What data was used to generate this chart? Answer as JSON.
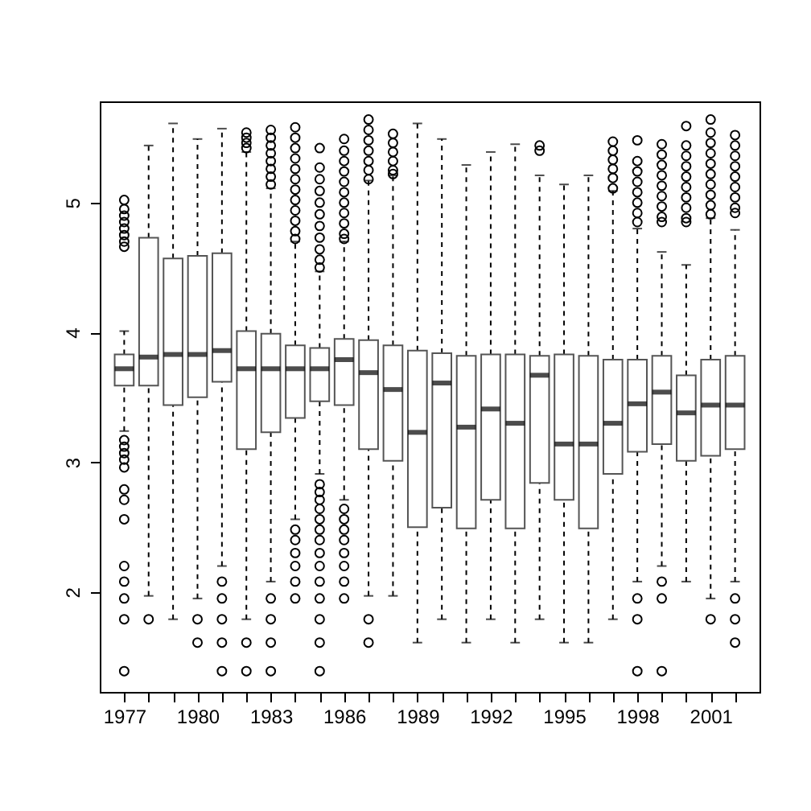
{
  "chart_data": {
    "type": "box",
    "categories": [
      "1977",
      null,
      null,
      "1980",
      null,
      null,
      "1983",
      null,
      null,
      "1986",
      null,
      null,
      "1989",
      null,
      null,
      "1992",
      null,
      null,
      "1995",
      null,
      null,
      "1998",
      null,
      null,
      "2001",
      null
    ],
    "boxes": [
      {
        "low": 3.24,
        "q1": 3.59,
        "median": 3.72,
        "q3": 3.83,
        "high": 4.01,
        "outliers": [
          5.02,
          4.95,
          4.9,
          4.85,
          4.8,
          4.75,
          4.7,
          4.66,
          3.17,
          3.12,
          3.07,
          3.02,
          2.96,
          2.79,
          2.71,
          2.56,
          2.2,
          2.08,
          1.95,
          1.79,
          1.39
        ]
      },
      {
        "low": 1.97,
        "q1": 3.59,
        "median": 3.81,
        "q3": 4.73,
        "high": 5.44,
        "outliers": [
          1.79
        ]
      },
      {
        "low": 1.79,
        "q1": 3.44,
        "median": 3.83,
        "q3": 4.57,
        "high": 5.61
      },
      {
        "low": 1.95,
        "q1": 3.5,
        "median": 3.83,
        "q3": 4.59,
        "high": 5.49,
        "outliers": [
          1.79,
          1.61
        ]
      },
      {
        "low": 2.2,
        "q1": 3.62,
        "median": 3.86,
        "q3": 4.61,
        "high": 5.57,
        "outliers": [
          2.08,
          1.95,
          1.79,
          1.61,
          1.39
        ]
      },
      {
        "low": 1.79,
        "q1": 3.1,
        "median": 3.72,
        "q3": 4.01,
        "high": 5.39,
        "outliers": [
          5.54,
          5.5,
          5.46,
          5.42,
          1.61,
          1.39
        ]
      },
      {
        "low": 2.08,
        "q1": 3.23,
        "median": 3.72,
        "q3": 3.99,
        "high": 5.11,
        "outliers": [
          5.56,
          5.5,
          5.44,
          5.38,
          5.32,
          5.26,
          5.2,
          5.14,
          1.95,
          1.79,
          1.61,
          1.39
        ]
      },
      {
        "low": 2.56,
        "q1": 3.34,
        "median": 3.72,
        "q3": 3.9,
        "high": 4.7,
        "outliers": [
          5.58,
          5.5,
          5.42,
          5.34,
          5.26,
          5.18,
          5.1,
          5.02,
          4.94,
          4.86,
          4.78,
          4.72,
          2.48,
          2.4,
          2.3,
          2.2,
          2.08,
          1.95
        ]
      },
      {
        "low": 2.91,
        "q1": 3.47,
        "median": 3.72,
        "q3": 3.88,
        "high": 4.47,
        "outliers": [
          5.42,
          5.27,
          5.18,
          5.09,
          5.0,
          4.91,
          4.82,
          4.73,
          4.64,
          4.56,
          4.5,
          2.83,
          2.77,
          2.71,
          2.64,
          2.56,
          2.48,
          2.4,
          2.3,
          2.2,
          2.08,
          1.95,
          1.79,
          1.61,
          1.39
        ]
      },
      {
        "low": 2.71,
        "q1": 3.44,
        "median": 3.79,
        "q3": 3.95,
        "high": 4.7,
        "outliers": [
          5.49,
          5.4,
          5.32,
          5.24,
          5.16,
          5.08,
          5.0,
          4.92,
          4.84,
          4.76,
          4.72,
          2.64,
          2.56,
          2.48,
          2.4,
          2.3,
          2.2,
          2.08,
          1.95
        ]
      },
      {
        "low": 1.97,
        "q1": 3.1,
        "median": 3.69,
        "q3": 3.94,
        "high": 5.17,
        "outliers": [
          5.64,
          5.56,
          5.48,
          5.4,
          5.32,
          5.25,
          5.18,
          1.79,
          1.61
        ]
      },
      {
        "low": 1.97,
        "q1": 3.01,
        "median": 3.56,
        "q3": 3.9,
        "high": 5.21,
        "outliers": [
          5.53,
          5.46,
          5.39,
          5.32,
          5.25,
          5.22
        ]
      },
      {
        "low": 1.61,
        "q1": 2.5,
        "median": 3.23,
        "q3": 3.86,
        "high": 5.61
      },
      {
        "low": 1.79,
        "q1": 2.65,
        "median": 3.61,
        "q3": 3.84,
        "high": 5.49
      },
      {
        "low": 1.61,
        "q1": 2.49,
        "median": 3.27,
        "q3": 3.82,
        "high": 5.29
      },
      {
        "low": 1.79,
        "q1": 2.71,
        "median": 3.41,
        "q3": 3.83,
        "high": 5.39
      },
      {
        "low": 1.61,
        "q1": 2.49,
        "median": 3.3,
        "q3": 3.83,
        "high": 5.45
      },
      {
        "low": 1.79,
        "q1": 2.84,
        "median": 3.67,
        "q3": 3.82,
        "high": 5.21,
        "outliers": [
          5.44,
          5.4
        ]
      },
      {
        "low": 1.61,
        "q1": 2.71,
        "median": 3.14,
        "q3": 3.83,
        "high": 5.14
      },
      {
        "low": 1.61,
        "q1": 2.49,
        "median": 3.14,
        "q3": 3.82,
        "high": 5.21
      },
      {
        "low": 1.79,
        "q1": 2.91,
        "median": 3.3,
        "q3": 3.79,
        "high": 5.09,
        "outliers": [
          5.47,
          5.4,
          5.33,
          5.26,
          5.19,
          5.11
        ]
      },
      {
        "low": 2.08,
        "q1": 3.08,
        "median": 3.45,
        "q3": 3.79,
        "high": 4.8,
        "outliers": [
          5.48,
          5.32,
          5.24,
          5.16,
          5.08,
          5.0,
          4.92,
          4.85,
          1.95,
          1.79,
          1.39
        ]
      },
      {
        "low": 2.2,
        "q1": 3.14,
        "median": 3.54,
        "q3": 3.82,
        "high": 4.62,
        "outliers": [
          5.45,
          5.37,
          5.29,
          5.21,
          5.13,
          5.05,
          4.97,
          4.89,
          4.85,
          2.08,
          1.95,
          1.39
        ]
      },
      {
        "low": 2.08,
        "q1": 3.01,
        "median": 3.38,
        "q3": 3.67,
        "high": 4.52,
        "outliers": [
          5.59,
          5.44,
          5.36,
          5.28,
          5.2,
          5.12,
          5.04,
          4.96,
          4.88,
          4.85
        ]
      },
      {
        "low": 1.95,
        "q1": 3.05,
        "median": 3.44,
        "q3": 3.79,
        "high": 4.88,
        "outliers": [
          5.64,
          5.54,
          5.46,
          5.38,
          5.3,
          5.22,
          5.14,
          5.06,
          4.98,
          4.91,
          1.79
        ]
      },
      {
        "low": 2.08,
        "q1": 3.1,
        "median": 3.44,
        "q3": 3.82,
        "high": 4.79,
        "outliers": [
          5.52,
          5.44,
          5.36,
          5.28,
          5.2,
          5.12,
          5.04,
          4.96,
          4.92,
          1.95,
          1.79,
          1.61
        ]
      }
    ],
    "ylim": [
      1.23,
      5.78
    ],
    "yticks": [
      2,
      3,
      4,
      5
    ]
  }
}
